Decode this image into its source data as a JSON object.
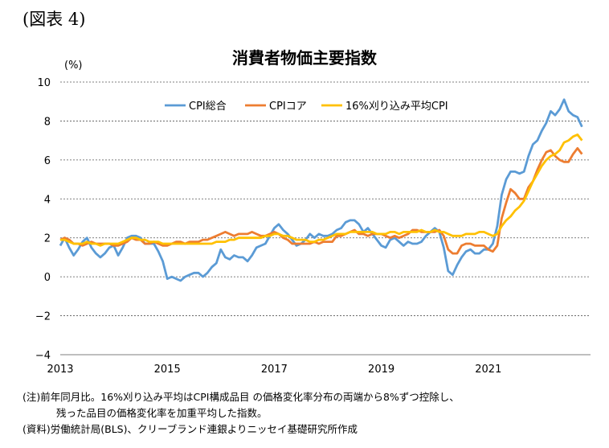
{
  "figure_label": "(図表 4)",
  "notes": [
    "(注)前年同月比。16%刈り込み平均はCPI構成品目 の価格変化率分布の両端から8%ずつ控除し、",
    "残った品目の価格変化率を加重平均した指数。",
    "(資料)労働統計局(BLS)、クリーブランド連銀よりニッセイ基礎研究所作成"
  ],
  "chart_data": {
    "type": "line",
    "title": "消費者物価主要指数",
    "ylabel": "(%)",
    "xlabel": "",
    "ylim": [
      -4,
      10
    ],
    "yticks": [
      -4,
      -2,
      0,
      2,
      4,
      6,
      8,
      10
    ],
    "ytick_labels": [
      "−4",
      "−2",
      "0",
      "2",
      "4",
      "6",
      "8",
      "10"
    ],
    "xticks": [
      "2013",
      "2015",
      "2017",
      "2019",
      "2021"
    ],
    "x_start": "2013-01",
    "grid": "horizontal dotted",
    "legend_position": "top-center",
    "series": [
      {
        "name": "CPI総合",
        "color": "#5B9BD5",
        "values": [
          1.6,
          2.0,
          1.5,
          1.1,
          1.4,
          1.8,
          2.0,
          1.5,
          1.2,
          1.0,
          1.2,
          1.5,
          1.6,
          1.1,
          1.5,
          2.0,
          2.1,
          2.1,
          2.0,
          1.7,
          1.7,
          1.7,
          1.3,
          0.8,
          -0.1,
          0.0,
          -0.1,
          -0.2,
          0.0,
          0.1,
          0.2,
          0.2,
          0.0,
          0.2,
          0.5,
          0.7,
          1.4,
          1.0,
          0.9,
          1.1,
          1.0,
          1.0,
          0.8,
          1.1,
          1.5,
          1.6,
          1.7,
          2.1,
          2.5,
          2.7,
          2.4,
          2.2,
          1.9,
          1.6,
          1.7,
          1.9,
          2.2,
          2.0,
          2.2,
          2.1,
          2.1,
          2.2,
          2.4,
          2.5,
          2.8,
          2.9,
          2.9,
          2.7,
          2.3,
          2.5,
          2.2,
          1.9,
          1.6,
          1.5,
          1.9,
          2.0,
          1.8,
          1.6,
          1.8,
          1.7,
          1.7,
          1.8,
          2.1,
          2.3,
          2.5,
          2.3,
          1.5,
          0.3,
          0.1,
          0.6,
          1.0,
          1.3,
          1.4,
          1.2,
          1.2,
          1.4,
          1.4,
          1.7,
          2.6,
          4.2,
          5.0,
          5.4,
          5.4,
          5.3,
          5.4,
          6.2,
          6.8,
          7.0,
          7.5,
          7.9,
          8.5,
          8.3,
          8.6,
          9.1,
          8.5,
          8.3,
          8.2,
          7.7
        ]
      },
      {
        "name": "CPIコア",
        "color": "#ED7D31",
        "values": [
          1.9,
          2.0,
          1.9,
          1.7,
          1.7,
          1.6,
          1.7,
          1.8,
          1.7,
          1.7,
          1.7,
          1.7,
          1.6,
          1.6,
          1.7,
          1.8,
          2.0,
          1.9,
          1.9,
          1.7,
          1.7,
          1.8,
          1.7,
          1.6,
          1.6,
          1.7,
          1.8,
          1.8,
          1.7,
          1.8,
          1.8,
          1.8,
          1.9,
          1.9,
          2.0,
          2.1,
          2.2,
          2.3,
          2.2,
          2.1,
          2.2,
          2.2,
          2.2,
          2.3,
          2.2,
          2.1,
          2.1,
          2.2,
          2.3,
          2.2,
          2.0,
          1.9,
          1.7,
          1.7,
          1.7,
          1.7,
          1.7,
          1.8,
          1.7,
          1.8,
          1.8,
          1.8,
          2.1,
          2.1,
          2.2,
          2.3,
          2.4,
          2.2,
          2.2,
          2.1,
          2.2,
          2.2,
          2.2,
          2.1,
          2.0,
          2.1,
          2.0,
          2.1,
          2.2,
          2.4,
          2.4,
          2.3,
          2.3,
          2.3,
          2.3,
          2.4,
          2.1,
          1.4,
          1.2,
          1.2,
          1.6,
          1.7,
          1.7,
          1.6,
          1.6,
          1.6,
          1.4,
          1.3,
          1.6,
          3.0,
          3.8,
          4.5,
          4.3,
          4.0,
          4.0,
          4.6,
          4.9,
          5.5,
          6.0,
          6.4,
          6.5,
          6.2,
          6.0,
          5.9,
          5.9,
          6.3,
          6.6,
          6.3
        ]
      },
      {
        "name": "16%刈り込み平均CPI",
        "color": "#FFC000",
        "values": [
          1.9,
          1.9,
          1.8,
          1.7,
          1.7,
          1.7,
          1.8,
          1.7,
          1.7,
          1.6,
          1.7,
          1.7,
          1.7,
          1.7,
          1.8,
          1.9,
          2.0,
          2.0,
          1.9,
          1.9,
          1.8,
          1.8,
          1.8,
          1.7,
          1.7,
          1.7,
          1.7,
          1.7,
          1.7,
          1.7,
          1.7,
          1.7,
          1.7,
          1.7,
          1.7,
          1.8,
          1.8,
          1.8,
          1.9,
          1.9,
          2.0,
          2.0,
          2.0,
          2.0,
          2.0,
          2.0,
          2.1,
          2.1,
          2.2,
          2.2,
          2.1,
          2.1,
          2.0,
          1.9,
          1.9,
          1.9,
          1.8,
          1.8,
          1.9,
          1.9,
          2.0,
          2.1,
          2.2,
          2.2,
          2.2,
          2.3,
          2.3,
          2.3,
          2.3,
          2.3,
          2.3,
          2.2,
          2.2,
          2.2,
          2.3,
          2.3,
          2.2,
          2.3,
          2.3,
          2.3,
          2.3,
          2.4,
          2.3,
          2.3,
          2.4,
          2.3,
          2.3,
          2.2,
          2.1,
          2.1,
          2.1,
          2.2,
          2.2,
          2.2,
          2.3,
          2.3,
          2.2,
          2.1,
          2.2,
          2.6,
          2.9,
          3.1,
          3.4,
          3.6,
          3.9,
          4.4,
          4.9,
          5.3,
          5.7,
          6.0,
          6.2,
          6.3,
          6.5,
          6.9,
          7.0,
          7.2,
          7.3,
          7.0
        ]
      }
    ]
  }
}
